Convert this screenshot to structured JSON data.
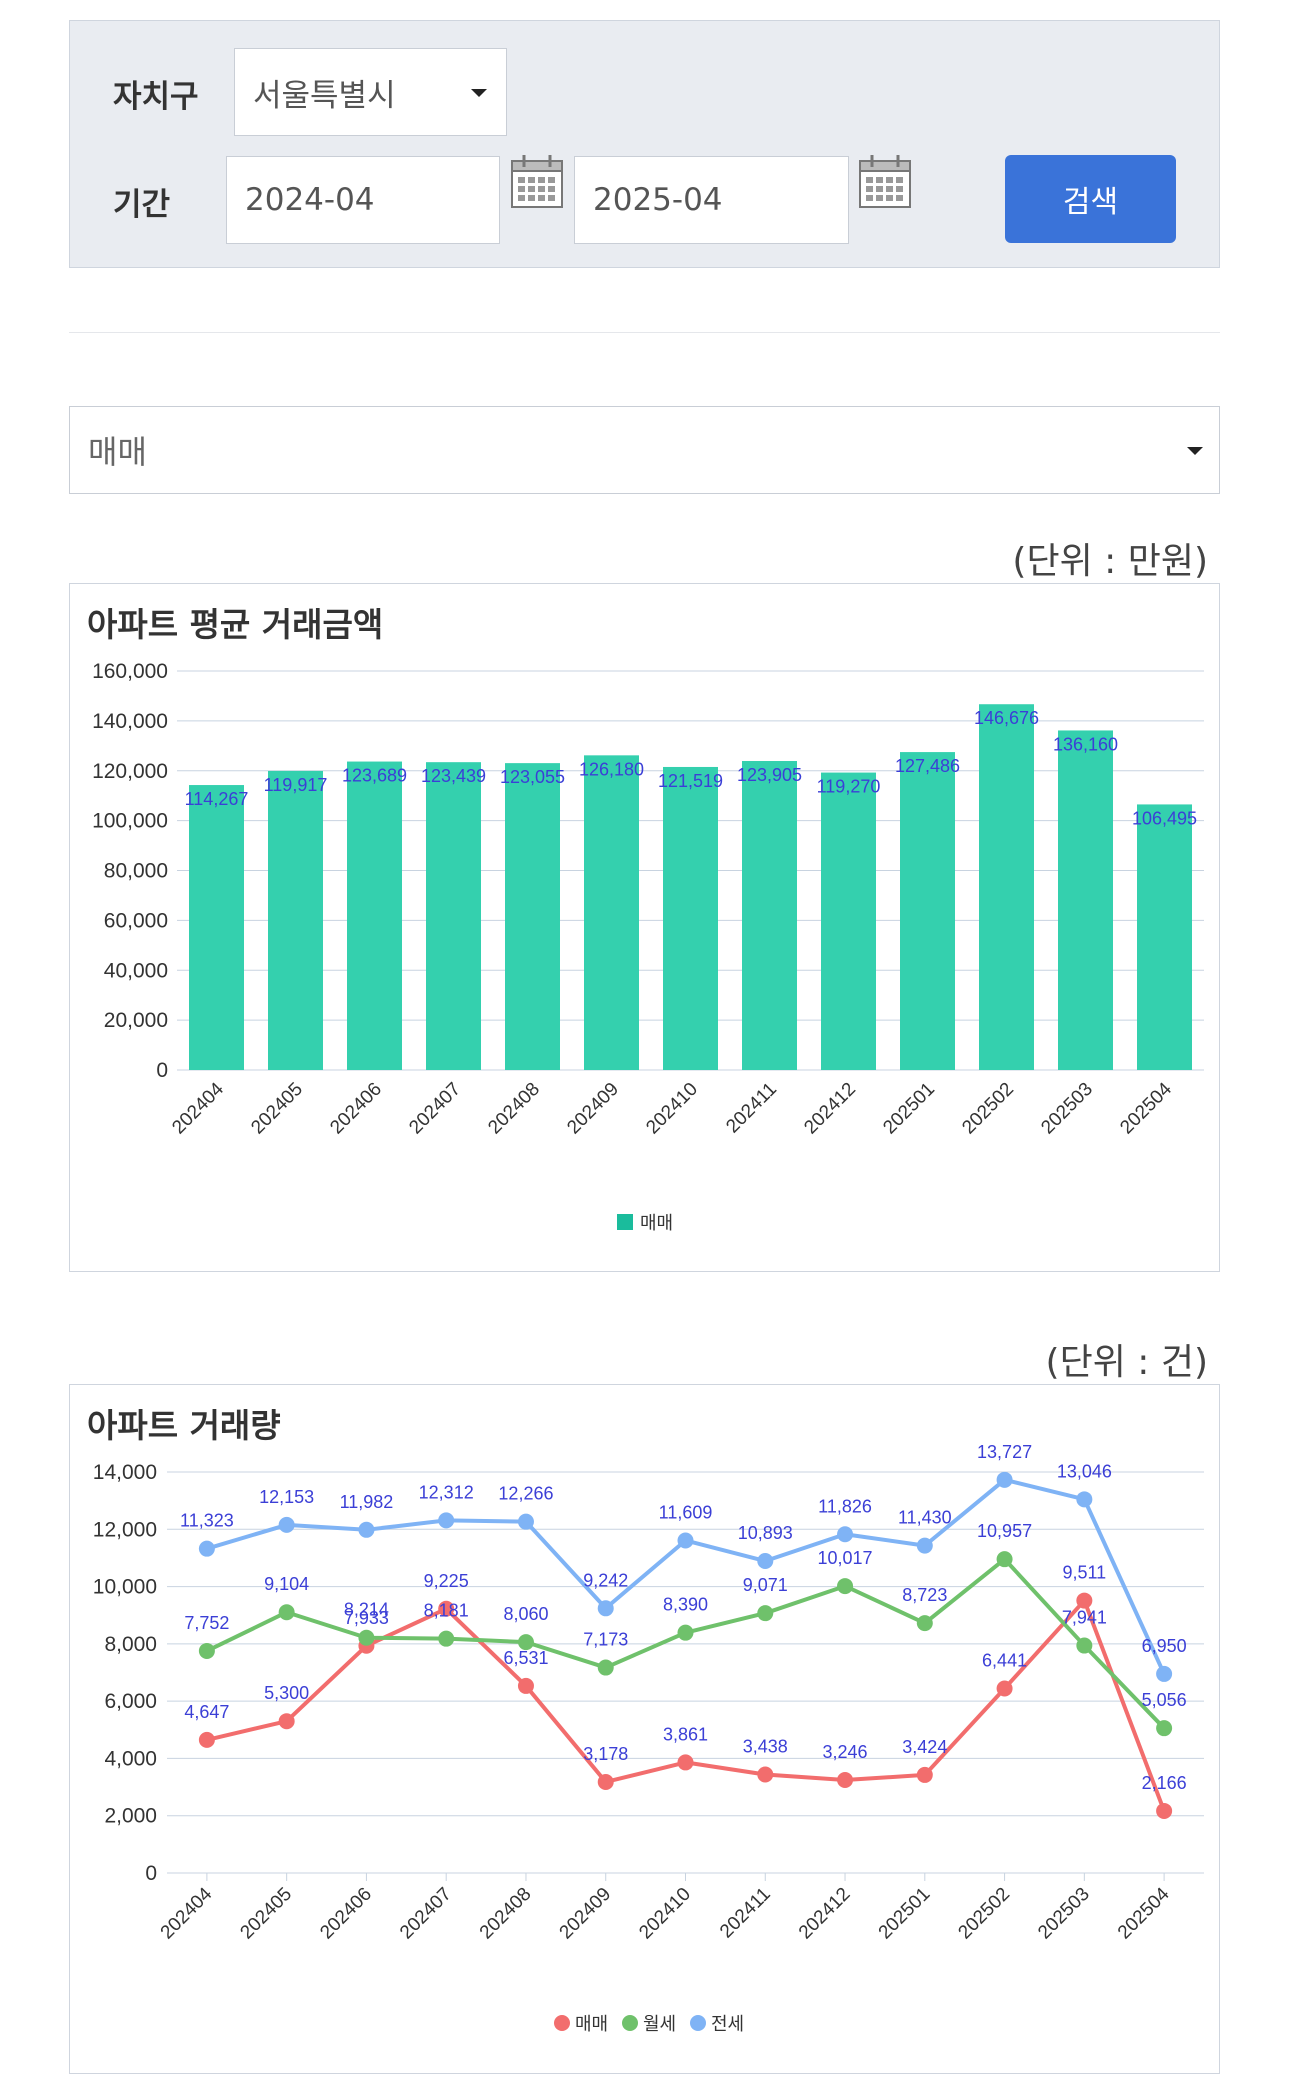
{
  "filters": {
    "district_label": "자치구",
    "district_value": "서울특별시",
    "period_label": "기간",
    "start_value": "2024-04",
    "end_value": "2025-04",
    "search_label": "검색"
  },
  "type_select": {
    "value": "매매"
  },
  "colors": {
    "bar": "#34d0ae",
    "bar_legend": "#1abc9c",
    "data_label": "#3b3fd6",
    "line_sale": "#f26d6d",
    "line_monthly": "#6fc16b",
    "line_jeonse": "#7fb3f5",
    "grid": "#c8d3e0",
    "button": "#3a73d9"
  },
  "price_unit": "(단위 : 만원)",
  "volume_unit": "(단위 : 건)",
  "chart_data": [
    {
      "type": "bar",
      "title": "아파트 평균 거래금액",
      "categories": [
        "202404",
        "202405",
        "202406",
        "202407",
        "202408",
        "202409",
        "202410",
        "202411",
        "202412",
        "202501",
        "202502",
        "202503",
        "202504"
      ],
      "series": [
        {
          "name": "매매",
          "values": [
            114267,
            119917,
            123689,
            123439,
            123055,
            126180,
            121519,
            123905,
            119270,
            127486,
            146676,
            136160,
            106495
          ]
        }
      ],
      "ylim": [
        0,
        160000
      ],
      "yticks": [
        0,
        20000,
        40000,
        60000,
        80000,
        100000,
        120000,
        140000,
        160000
      ],
      "grid": true,
      "legend": "bottom-center"
    },
    {
      "type": "line",
      "title": "아파트 거래량",
      "categories": [
        "202404",
        "202405",
        "202406",
        "202407",
        "202408",
        "202409",
        "202410",
        "202411",
        "202412",
        "202501",
        "202502",
        "202503",
        "202504"
      ],
      "series": [
        {
          "name": "매매",
          "values": [
            4647,
            5300,
            7933,
            9225,
            6531,
            3178,
            3861,
            3438,
            3246,
            3424,
            6441,
            9511,
            2166
          ]
        },
        {
          "name": "월세",
          "values": [
            7752,
            9104,
            8214,
            8181,
            8060,
            7173,
            8390,
            9071,
            10017,
            8723,
            10957,
            7941,
            5056
          ]
        },
        {
          "name": "전세",
          "values": [
            11323,
            12153,
            11982,
            12312,
            12266,
            9242,
            11609,
            10893,
            11826,
            11430,
            13727,
            13046,
            6950
          ]
        }
      ],
      "ylim": [
        0,
        14000
      ],
      "yticks": [
        0,
        2000,
        4000,
        6000,
        8000,
        10000,
        12000,
        14000
      ],
      "grid": true,
      "legend": "bottom-center"
    }
  ]
}
